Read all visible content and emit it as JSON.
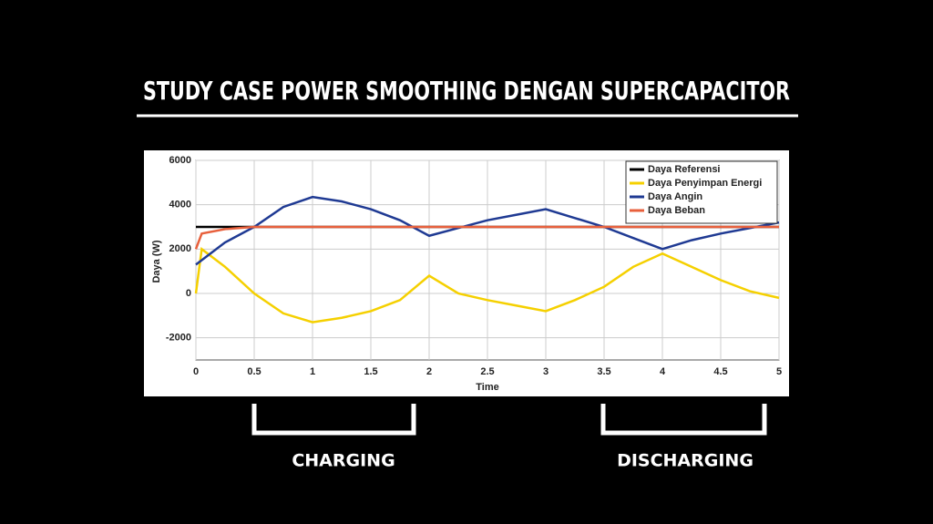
{
  "slide": {
    "title": "STUDY CASE POWER SMOOTHING DENGAN SUPERCAPACITOR",
    "annotations": [
      "CHARGING",
      "DISCHARGING"
    ]
  },
  "chart_data": {
    "type": "line",
    "xlabel": "Time",
    "ylabel": "Daya (W)",
    "x": [
      0,
      0.05,
      0.25,
      0.5,
      0.75,
      1,
      1.25,
      1.5,
      1.75,
      2,
      2.25,
      2.5,
      2.75,
      3,
      3.25,
      3.5,
      3.75,
      4,
      4.25,
      4.5,
      4.75,
      5
    ],
    "series": [
      {
        "name": "Daya Referensi",
        "color": "#000000",
        "values": [
          3000,
          3000,
          3000,
          3000,
          3000,
          3000,
          3000,
          3000,
          3000,
          3000,
          3000,
          3000,
          3000,
          3000,
          3000,
          3000,
          3000,
          3000,
          3000,
          3000,
          3000,
          3000
        ]
      },
      {
        "name": "Daya Penyimpan Energi",
        "color": "#f5d000",
        "values": [
          0,
          2000,
          1200,
          0,
          -900,
          -1300,
          -1100,
          -800,
          -300,
          800,
          0,
          -300,
          -550,
          -800,
          -300,
          300,
          1200,
          1800,
          1200,
          600,
          100,
          -200
        ]
      },
      {
        "name": "Daya Angin",
        "color": "#1f3a93",
        "values": [
          1300,
          1500,
          2300,
          3000,
          3900,
          4350,
          4150,
          3800,
          3300,
          2600,
          2950,
          3300,
          3550,
          3800,
          3400,
          3000,
          2500,
          2000,
          2400,
          2700,
          2950,
          3200
        ]
      },
      {
        "name": "Daya Beban",
        "color": "#e8603c",
        "values": [
          2000,
          2700,
          2900,
          3000,
          3000,
          3000,
          3000,
          3000,
          3000,
          3000,
          3000,
          3000,
          3000,
          3000,
          3000,
          3000,
          3000,
          3000,
          3000,
          3000,
          3000,
          3000
        ]
      }
    ],
    "xlim": [
      0,
      5
    ],
    "xticks": [
      0,
      0.5,
      1,
      1.5,
      2,
      2.5,
      3,
      3.5,
      4,
      4.5,
      5
    ],
    "ylim": [
      -3000,
      6000
    ],
    "yticks": [
      -2000,
      0,
      2000,
      4000,
      6000
    ],
    "grid": true,
    "legend": "upper right"
  }
}
